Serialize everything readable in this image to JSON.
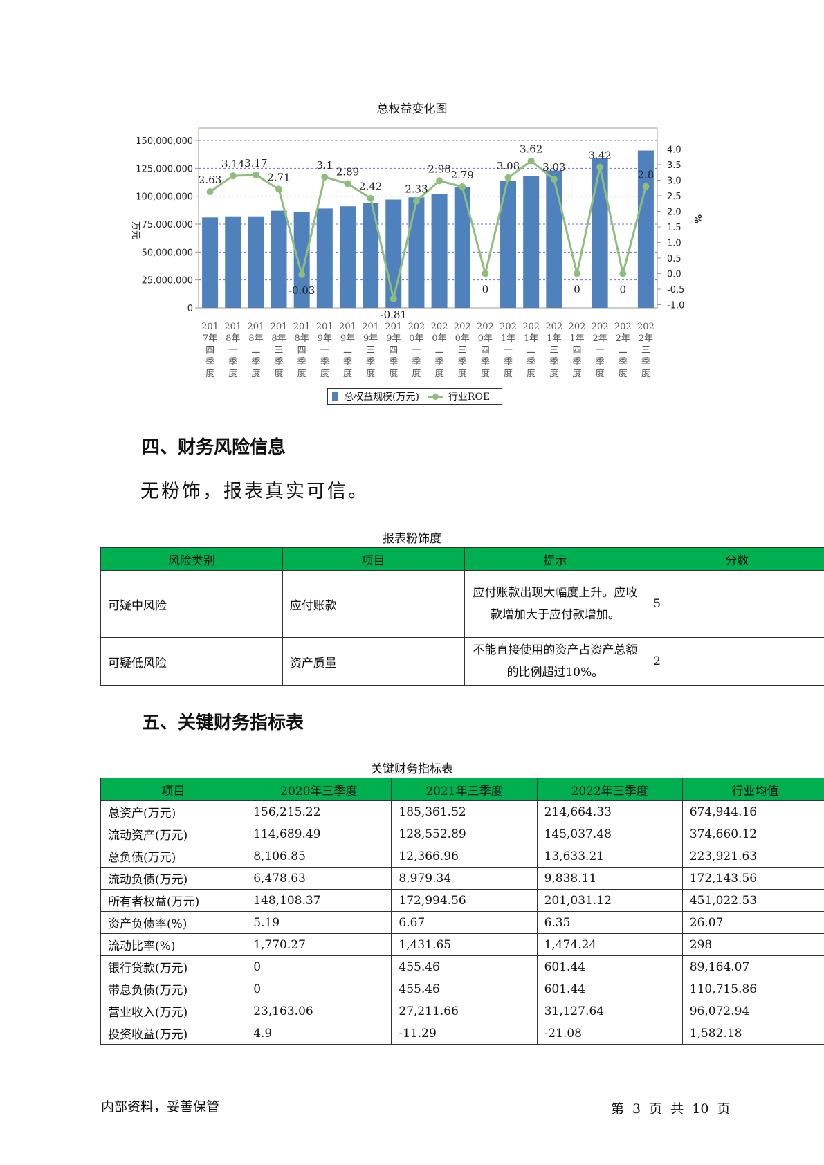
{
  "chart_data": {
    "type": "bar",
    "title": "总权益变化图",
    "ylabel": "万元",
    "y2label": "%",
    "ylim": [
      0,
      150000000
    ],
    "y2lim": [
      -1.0,
      4.0
    ],
    "yticks": [
      "150,000,000",
      "125,000,000",
      "100,000,000",
      "75,000,000",
      "50,000,000",
      "25,000,000",
      "0"
    ],
    "y2ticks": [
      "4.0",
      "3.5",
      "3.0",
      "2.5",
      "2.0",
      "1.5",
      "1.0",
      "0.5",
      "0.0",
      "-0.5",
      "-1.0"
    ],
    "categories": [
      [
        "201",
        "7年",
        "四",
        "季",
        "度"
      ],
      [
        "201",
        "8年",
        "一",
        "季",
        "度"
      ],
      [
        "201",
        "8年",
        "二",
        "季",
        "度"
      ],
      [
        "201",
        "8年",
        "三",
        "季",
        "度"
      ],
      [
        "201",
        "8年",
        "四",
        "季",
        "度"
      ],
      [
        "201",
        "9年",
        "一",
        "季",
        "度"
      ],
      [
        "201",
        "9年",
        "二",
        "季",
        "度"
      ],
      [
        "201",
        "9年",
        "三",
        "季",
        "度"
      ],
      [
        "201",
        "9年",
        "四",
        "季",
        "度"
      ],
      [
        "202",
        "0年",
        "一",
        "季",
        "度"
      ],
      [
        "202",
        "0年",
        "二",
        "季",
        "度"
      ],
      [
        "202",
        "0年",
        "三",
        "季",
        "度"
      ],
      [
        "202",
        "0年",
        "四",
        "季",
        "度"
      ],
      [
        "202",
        "1年",
        "一",
        "季",
        "度"
      ],
      [
        "202",
        "1年",
        "二",
        "季",
        "度"
      ],
      [
        "202",
        "1年",
        "三",
        "季",
        "度"
      ],
      [
        "202",
        "1年",
        "四",
        "季",
        "度"
      ],
      [
        "202",
        "2年",
        "一",
        "季",
        "度"
      ],
      [
        "202",
        "2年",
        "二",
        "季",
        "度"
      ],
      [
        "202",
        "2年",
        "三",
        "季",
        "度"
      ]
    ],
    "series": [
      {
        "name": "总权益规模(万元)",
        "type": "bar",
        "color": "#4f81bd",
        "values": [
          81000000,
          82000000,
          82000000,
          87000000,
          86000000,
          89000000,
          91000000,
          94000000,
          97000000,
          99000000,
          102000000,
          108000000,
          null,
          114000000,
          118000000,
          123000000,
          null,
          134000000,
          null,
          141000000
        ]
      },
      {
        "name": "行业ROE",
        "type": "line",
        "color": "#8fbd7e",
        "values": [
          2.63,
          3.14,
          3.17,
          2.71,
          -0.03,
          3.1,
          2.89,
          2.42,
          -0.81,
          2.33,
          2.98,
          2.79,
          0,
          3.08,
          3.62,
          3.03,
          0,
          3.42,
          0,
          2.8
        ],
        "labels": [
          "2.63",
          "3.14",
          "3.17",
          "2.71",
          "-0.03",
          "3.1",
          "2.89",
          "2.42",
          "-0.81",
          "2.33",
          "2.98",
          "2.79",
          "0",
          "3.08",
          "3.62",
          "3.03",
          "0",
          "3.42",
          "0",
          "2.8"
        ]
      }
    ],
    "grid": true,
    "legend": "bottom"
  },
  "section4": {
    "heading": "四、财务风险信息",
    "text": "无粉饰，报表真实可信。",
    "table_caption": "报表粉饰度",
    "headers": [
      "风险类别",
      "项目",
      "提示",
      "分数"
    ],
    "rows": [
      [
        "可疑中风险",
        "应付账款",
        "应付账款出现大幅度上升。应收款增加大于应付款增加。",
        "5"
      ],
      [
        "可疑低风险",
        "资产质量",
        "不能直接使用的资产占资产总额的比例超过10%。",
        "2"
      ]
    ]
  },
  "section5": {
    "heading": "五、关键财务指标表",
    "table_caption": "关键财务指标表",
    "headers": [
      "项目",
      "2020年三季度",
      "2021年三季度",
      "2022年三季度",
      "行业均值"
    ],
    "rows": [
      [
        "总资产(万元)",
        "156,215.22",
        "185,361.52",
        "214,664.33",
        "674,944.16"
      ],
      [
        "流动资产(万元)",
        "114,689.49",
        "128,552.89",
        "145,037.48",
        "374,660.12"
      ],
      [
        "总负债(万元)",
        "8,106.85",
        "12,366.96",
        "13,633.21",
        "223,921.63"
      ],
      [
        "流动负债(万元)",
        "6,478.63",
        "8,979.34",
        "9,838.11",
        "172,143.56"
      ],
      [
        "所有者权益(万元)",
        "148,108.37",
        "172,994.56",
        "201,031.12",
        "451,022.53"
      ],
      [
        "资产负债率(%)",
        "5.19",
        "6.67",
        "6.35",
        "26.07"
      ],
      [
        "流动比率(%)",
        "1,770.27",
        "1,431.65",
        "1,474.24",
        "298"
      ],
      [
        "银行贷款(万元)",
        "0",
        "455.46",
        "601.44",
        "89,164.07"
      ],
      [
        "带息负债(万元)",
        "0",
        "455.46",
        "601.44",
        "110,715.86"
      ],
      [
        "营业收入(万元)",
        "23,163.06",
        "27,211.66",
        "31,127.64",
        "96,072.94"
      ],
      [
        "投资收益(万元)",
        "4.9",
        "-11.29",
        "-21.08",
        "1,582.18"
      ]
    ]
  },
  "footer": {
    "left": "内部资料，妥善保管",
    "right": "第 3 页   共 10 页"
  }
}
